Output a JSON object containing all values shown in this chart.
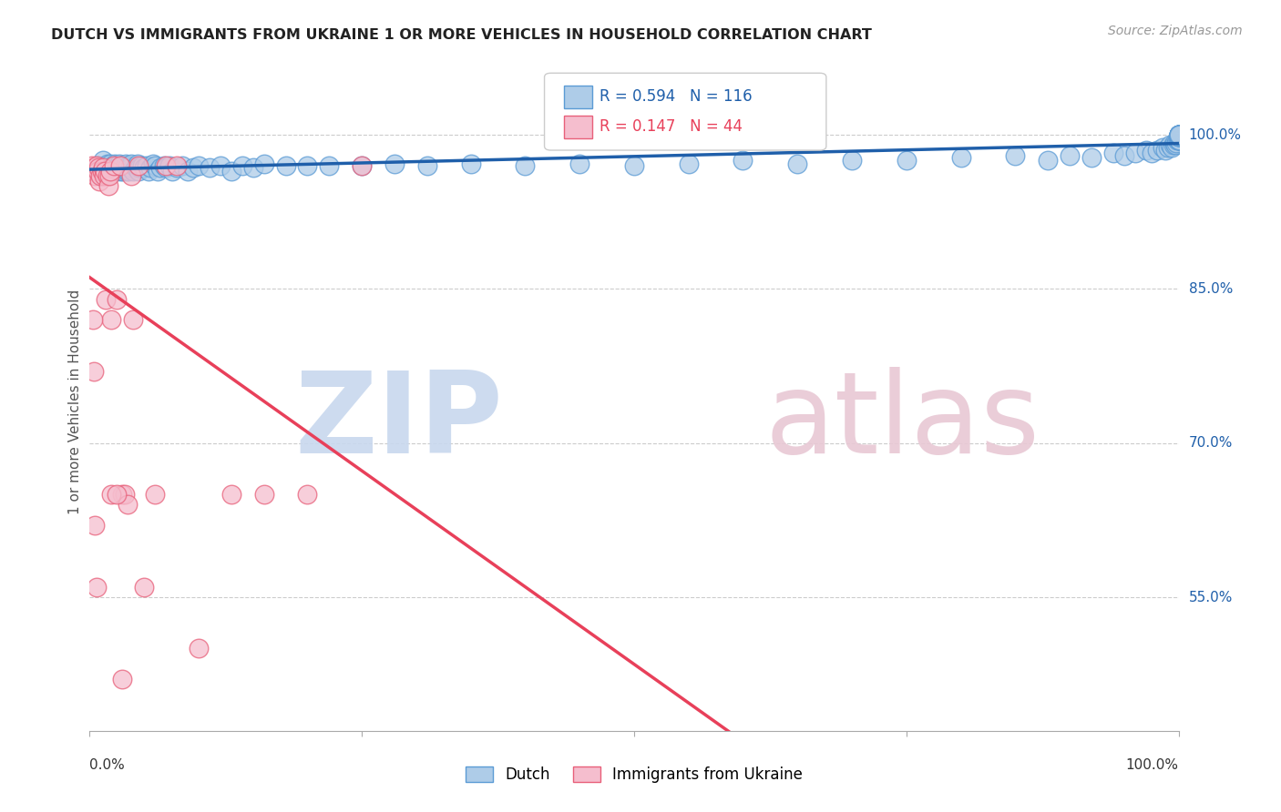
{
  "title": "DUTCH VS IMMIGRANTS FROM UKRAINE 1 OR MORE VEHICLES IN HOUSEHOLD CORRELATION CHART",
  "source": "Source: ZipAtlas.com",
  "ylabel": "1 or more Vehicles in Household",
  "ytick_labels": [
    "55.0%",
    "70.0%",
    "85.0%",
    "100.0%"
  ],
  "ytick_values": [
    0.55,
    0.7,
    0.85,
    1.0
  ],
  "xlim": [
    0.0,
    1.0
  ],
  "ylim": [
    0.42,
    1.06
  ],
  "dutch_color": "#aecce8",
  "dutch_edge_color": "#5b9bd5",
  "ukraine_color": "#f5bece",
  "ukraine_edge_color": "#e8607a",
  "dutch_line_color": "#1f5faa",
  "ukraine_line_color": "#e8405a",
  "legend_R_dutch": "R = 0.594",
  "legend_N_dutch": "N = 116",
  "legend_R_ukraine": "R = 0.147",
  "legend_N_ukraine": "N = 44",
  "watermark_zip_color": "#c8d8ee",
  "watermark_atlas_color": "#e8c8d4",
  "dutch_scatter_x": [
    0.005,
    0.008,
    0.01,
    0.012,
    0.013,
    0.014,
    0.015,
    0.016,
    0.017,
    0.018,
    0.019,
    0.02,
    0.021,
    0.022,
    0.023,
    0.024,
    0.025,
    0.026,
    0.027,
    0.028,
    0.03,
    0.031,
    0.032,
    0.033,
    0.034,
    0.035,
    0.036,
    0.037,
    0.038,
    0.04,
    0.042,
    0.043,
    0.044,
    0.045,
    0.046,
    0.048,
    0.05,
    0.052,
    0.054,
    0.056,
    0.058,
    0.06,
    0.062,
    0.065,
    0.068,
    0.07,
    0.073,
    0.076,
    0.08,
    0.085,
    0.09,
    0.095,
    0.1,
    0.11,
    0.12,
    0.13,
    0.14,
    0.15,
    0.16,
    0.18,
    0.2,
    0.22,
    0.25,
    0.28,
    0.31,
    0.35,
    0.4,
    0.45,
    0.5,
    0.55,
    0.6,
    0.65,
    0.7,
    0.75,
    0.8,
    0.85,
    0.88,
    0.9,
    0.92,
    0.94,
    0.95,
    0.96,
    0.97,
    0.975,
    0.98,
    0.985,
    0.988,
    0.99,
    0.992,
    0.994,
    0.995,
    0.996,
    0.997,
    0.998,
    0.999,
    1.0,
    1.0,
    1.0,
    1.0,
    1.0,
    1.0,
    1.0,
    1.0,
    1.0,
    1.0,
    1.0,
    1.0,
    1.0,
    1.0,
    1.0,
    1.0,
    1.0,
    1.0,
    1.0,
    1.0,
    1.0
  ],
  "dutch_scatter_y": [
    0.965,
    0.97,
    0.96,
    0.975,
    0.965,
    0.968,
    0.97,
    0.972,
    0.965,
    0.968,
    0.972,
    0.965,
    0.97,
    0.968,
    0.972,
    0.965,
    0.968,
    0.97,
    0.972,
    0.965,
    0.97,
    0.965,
    0.968,
    0.972,
    0.965,
    0.97,
    0.965,
    0.968,
    0.972,
    0.965,
    0.968,
    0.97,
    0.972,
    0.965,
    0.968,
    0.97,
    0.968,
    0.97,
    0.965,
    0.968,
    0.972,
    0.97,
    0.965,
    0.968,
    0.97,
    0.968,
    0.97,
    0.965,
    0.968,
    0.97,
    0.965,
    0.968,
    0.97,
    0.968,
    0.97,
    0.965,
    0.97,
    0.968,
    0.972,
    0.97,
    0.97,
    0.97,
    0.97,
    0.972,
    0.97,
    0.972,
    0.97,
    0.972,
    0.97,
    0.972,
    0.975,
    0.972,
    0.975,
    0.975,
    0.978,
    0.98,
    0.975,
    0.98,
    0.978,
    0.982,
    0.98,
    0.982,
    0.985,
    0.982,
    0.985,
    0.988,
    0.985,
    0.988,
    0.99,
    0.988,
    0.99,
    0.992,
    0.99,
    0.992,
    0.995,
    0.995,
    0.995,
    0.995,
    0.995,
    0.998,
    0.998,
    0.998,
    0.998,
    1.0,
    1.0,
    1.0,
    1.0,
    1.0,
    1.0,
    1.0,
    1.0,
    1.0,
    1.0,
    1.0,
    1.0,
    1.0
  ],
  "ukraine_scatter_x": [
    0.002,
    0.003,
    0.004,
    0.005,
    0.006,
    0.007,
    0.008,
    0.009,
    0.01,
    0.011,
    0.012,
    0.013,
    0.014,
    0.015,
    0.016,
    0.017,
    0.018,
    0.019,
    0.02,
    0.022,
    0.025,
    0.028,
    0.03,
    0.032,
    0.035,
    0.038,
    0.04,
    0.045,
    0.05,
    0.06,
    0.07,
    0.08,
    0.1,
    0.13,
    0.16,
    0.2,
    0.25,
    0.02,
    0.025,
    0.03,
    0.003,
    0.004,
    0.005,
    0.006
  ],
  "ukraine_scatter_y": [
    0.97,
    0.965,
    0.968,
    0.96,
    0.97,
    0.965,
    0.968,
    0.955,
    0.96,
    0.965,
    0.968,
    0.96,
    0.965,
    0.84,
    0.96,
    0.95,
    0.96,
    0.965,
    0.82,
    0.97,
    0.84,
    0.97,
    0.65,
    0.65,
    0.64,
    0.96,
    0.82,
    0.97,
    0.56,
    0.65,
    0.97,
    0.97,
    0.5,
    0.65,
    0.65,
    0.65,
    0.97,
    0.65,
    0.65,
    0.47,
    0.82,
    0.77,
    0.62,
    0.56
  ]
}
